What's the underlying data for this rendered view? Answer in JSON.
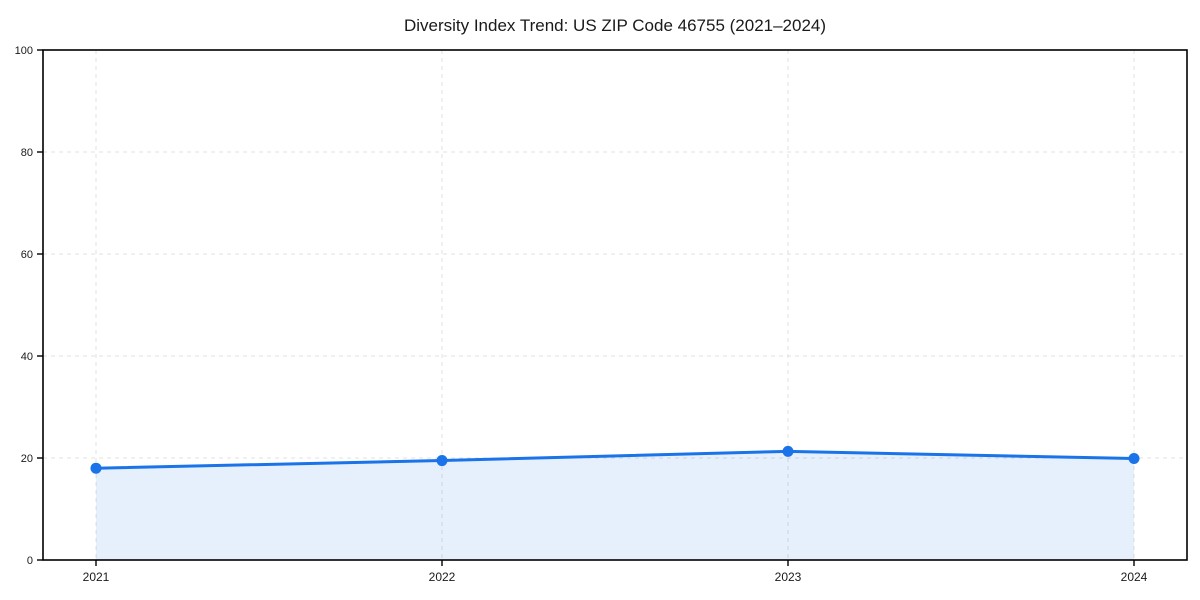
{
  "page": {
    "background": "#ffffff"
  },
  "chart_data": {
    "type": "area",
    "title": "Diversity Index Trend: US ZIP Code 46755 (2021–2024)",
    "x": [
      "2021",
      "2022",
      "2023",
      "2024"
    ],
    "values": [
      18.0,
      19.5,
      21.3,
      19.9
    ],
    "xlabel": "",
    "ylabel": "",
    "ylim": [
      0,
      100
    ],
    "yticks": [
      0,
      20,
      40,
      60,
      80,
      100
    ],
    "grid": true,
    "grid_style": "dashed",
    "legend_position": "none",
    "markers": true,
    "colors": {
      "line": "#1a73e8",
      "marker": "#1a73e8",
      "area": "#1a73e8",
      "area_opacity": 0.11,
      "grid": "#e0e0e0",
      "axis": "#000000",
      "text": "#1a1a1a"
    }
  }
}
